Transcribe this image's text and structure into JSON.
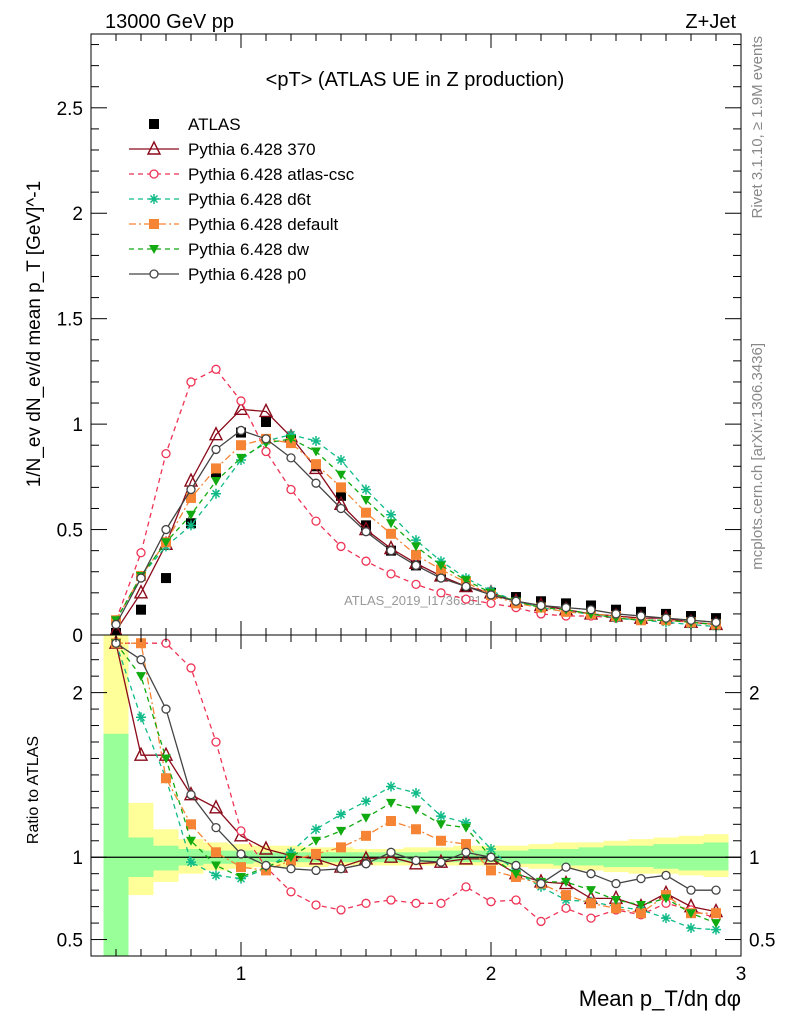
{
  "header": {
    "energy_label": "13000 GeV pp",
    "process_label": "Z+Jet",
    "side_rivet": "Rivet 3.1.10, ≥ 1.9M events",
    "side_mcplots": "mcplots.cern.ch [arXiv:1306.3436]",
    "watermark": "ATLAS_2019_I1736531"
  },
  "chart_data": [
    {
      "type": "scatter",
      "title": "<pT> (ATLAS UE in Z production)",
      "xlabel": "Mean p_T/dη dφ",
      "ylabel": "1/N_ev dN_ev/d mean p_T [GeV]^-1",
      "xlim": [
        0.4,
        3.0
      ],
      "ylim": [
        0,
        2.85
      ],
      "legend_position": "top-left",
      "x_ticks": [
        1,
        2,
        3
      ],
      "y_ticks": [
        0,
        0.5,
        1,
        1.5,
        2,
        2.5
      ],
      "x": [
        0.5,
        0.6,
        0.7,
        0.8,
        0.9,
        1.0,
        1.1,
        1.2,
        1.3,
        1.4,
        1.5,
        1.6,
        1.7,
        1.8,
        1.9,
        2.0,
        2.1,
        2.2,
        2.3,
        2.4,
        2.5,
        2.6,
        2.7,
        2.8,
        2.9
      ],
      "series": [
        {
          "name": "ATLAS",
          "color": "#000000",
          "marker": "square",
          "dash": "none",
          "values": [
            0.01,
            0.12,
            0.27,
            0.53,
            0.77,
            0.96,
            1.01,
            0.93,
            0.8,
            0.66,
            0.52,
            0.4,
            0.33,
            0.28,
            0.23,
            0.2,
            0.18,
            0.16,
            0.15,
            0.14,
            0.12,
            0.11,
            0.1,
            0.09,
            0.08
          ]
        },
        {
          "name": "Pythia 6.428 370",
          "color": "#8b0a1a",
          "marker": "triangle-open",
          "dash": "solid",
          "values": [
            0.02,
            0.2,
            0.43,
            0.73,
            0.95,
            1.07,
            1.06,
            0.94,
            0.79,
            0.62,
            0.5,
            0.41,
            0.34,
            0.28,
            0.23,
            0.2,
            0.16,
            0.14,
            0.12,
            0.1,
            0.09,
            0.08,
            0.08,
            0.06,
            0.05
          ]
        },
        {
          "name": "Pythia 6.428 atlas-csc",
          "color": "#ee3355",
          "marker": "circle-open",
          "dash": "dashed",
          "values": [
            0.07,
            0.39,
            0.86,
            1.2,
            1.26,
            1.11,
            0.87,
            0.69,
            0.54,
            0.42,
            0.35,
            0.29,
            0.24,
            0.2,
            0.17,
            0.15,
            0.13,
            0.1,
            0.09,
            0.09,
            0.08,
            0.07,
            0.07,
            0.06,
            0.05
          ]
        },
        {
          "name": "Pythia 6.428 d6t",
          "color": "#11bb88",
          "marker": "star",
          "dash": "dashed",
          "values": [
            0.07,
            0.28,
            0.42,
            0.52,
            0.67,
            0.83,
            0.92,
            0.95,
            0.92,
            0.83,
            0.69,
            0.57,
            0.45,
            0.35,
            0.27,
            0.21,
            0.16,
            0.13,
            0.11,
            0.1,
            0.08,
            0.07,
            0.06,
            0.05,
            0.04
          ]
        },
        {
          "name": "Pythia 6.428 default",
          "color": "#f58535",
          "marker": "square",
          "dash": "dashdot",
          "values": [
            0.07,
            0.28,
            0.44,
            0.65,
            0.79,
            0.9,
            0.93,
            0.91,
            0.81,
            0.7,
            0.58,
            0.48,
            0.38,
            0.31,
            0.25,
            0.19,
            0.15,
            0.13,
            0.11,
            0.1,
            0.09,
            0.07,
            0.07,
            0.06,
            0.05
          ]
        },
        {
          "name": "Pythia 6.428 dw",
          "color": "#11aa11",
          "marker": "triangle-down",
          "dash": "dashed",
          "values": [
            0.07,
            0.28,
            0.44,
            0.57,
            0.73,
            0.84,
            0.91,
            0.93,
            0.87,
            0.76,
            0.64,
            0.53,
            0.42,
            0.33,
            0.26,
            0.2,
            0.16,
            0.13,
            0.12,
            0.1,
            0.08,
            0.07,
            0.07,
            0.06,
            0.05
          ]
        },
        {
          "name": "Pythia 6.428 p0",
          "color": "#444444",
          "marker": "circle-open",
          "dash": "solid",
          "values": [
            0.05,
            0.27,
            0.5,
            0.69,
            0.88,
            0.97,
            0.93,
            0.84,
            0.72,
            0.6,
            0.49,
            0.4,
            0.33,
            0.27,
            0.23,
            0.19,
            0.16,
            0.14,
            0.13,
            0.12,
            0.1,
            0.09,
            0.08,
            0.07,
            0.06
          ]
        }
      ]
    },
    {
      "type": "scatter",
      "ylabel": "Ratio to ATLAS",
      "xlabel": "Mean p_T/dη dφ",
      "xlim": [
        0.4,
        3.0
      ],
      "ylim": [
        0.4,
        2.35
      ],
      "x_ticks": [
        1,
        2,
        3
      ],
      "y_ticks": [
        0.5,
        1,
        2
      ],
      "reference_line": 1,
      "x": [
        0.5,
        0.6,
        0.7,
        0.8,
        0.9,
        1.0,
        1.1,
        1.2,
        1.3,
        1.4,
        1.5,
        1.6,
        1.7,
        1.8,
        1.9,
        2.0,
        2.1,
        2.2,
        2.3,
        2.4,
        2.5,
        2.6,
        2.7,
        2.8,
        2.9
      ],
      "band_edges": [
        0.45,
        0.55,
        0.65,
        0.75,
        0.85,
        0.95,
        1.05,
        1.15,
        1.25,
        1.35,
        1.45,
        1.55,
        1.65,
        1.75,
        1.85,
        1.95,
        2.05,
        2.15,
        2.25,
        2.35,
        2.45,
        2.55,
        2.65,
        2.75,
        2.85,
        2.95
      ],
      "band_yellow_low": [
        0.0,
        0.77,
        0.85,
        0.9,
        0.92,
        0.93,
        0.94,
        0.94,
        0.94,
        0.95,
        0.95,
        0.95,
        0.95,
        0.95,
        0.95,
        0.95,
        0.94,
        0.93,
        0.93,
        0.92,
        0.91,
        0.9,
        0.9,
        0.89,
        0.88
      ],
      "band_yellow_high": [
        3.0,
        1.33,
        1.17,
        1.11,
        1.09,
        1.08,
        1.07,
        1.07,
        1.06,
        1.06,
        1.05,
        1.05,
        1.06,
        1.06,
        1.07,
        1.07,
        1.07,
        1.08,
        1.09,
        1.09,
        1.1,
        1.11,
        1.12,
        1.13,
        1.14
      ],
      "band_green_low": [
        0.0,
        0.88,
        0.92,
        0.95,
        0.96,
        0.96,
        0.97,
        0.97,
        0.97,
        0.97,
        0.97,
        0.97,
        0.97,
        0.97,
        0.97,
        0.97,
        0.96,
        0.96,
        0.95,
        0.95,
        0.94,
        0.94,
        0.93,
        0.92,
        0.92
      ],
      "band_green_high": [
        1.75,
        1.12,
        1.07,
        1.05,
        1.04,
        1.04,
        1.03,
        1.03,
        1.03,
        1.03,
        1.03,
        1.03,
        1.03,
        1.04,
        1.04,
        1.04,
        1.04,
        1.05,
        1.05,
        1.06,
        1.07,
        1.07,
        1.08,
        1.08,
        1.09
      ],
      "series": [
        {
          "name": "Pythia 6.428 370",
          "color": "#8b0a1a",
          "marker": "triangle-open",
          "dash": "solid",
          "values": [
            2.3,
            1.62,
            1.62,
            1.38,
            1.3,
            1.13,
            1.05,
            1.01,
            0.99,
            0.94,
            0.99,
            1.0,
            0.96,
            0.97,
            0.99,
            0.99,
            0.9,
            0.85,
            0.84,
            0.75,
            0.75,
            0.7,
            0.78,
            0.7,
            0.67
          ]
        },
        {
          "name": "Pythia 6.428 atlas-csc",
          "color": "#ee3355",
          "marker": "circle-open",
          "dash": "dashed",
          "values": [
            2.3,
            2.3,
            2.3,
            2.15,
            1.7,
            1.16,
            0.94,
            0.79,
            0.71,
            0.68,
            0.72,
            0.74,
            0.72,
            0.72,
            0.82,
            0.73,
            0.74,
            0.61,
            0.69,
            0.63,
            0.68,
            0.65,
            0.72,
            0.68,
            0.63
          ]
        },
        {
          "name": "Pythia 6.428 d6t",
          "color": "#11bb88",
          "marker": "star",
          "dash": "dashed",
          "values": [
            2.3,
            1.85,
            1.48,
            0.97,
            0.89,
            0.87,
            0.93,
            1.03,
            1.17,
            1.26,
            1.34,
            1.43,
            1.39,
            1.25,
            1.21,
            1.05,
            0.91,
            0.82,
            0.74,
            0.73,
            0.7,
            0.68,
            0.63,
            0.57,
            0.56
          ]
        },
        {
          "name": "Pythia 6.428 default",
          "color": "#f58535",
          "marker": "square",
          "dash": "dashdot",
          "values": [
            2.3,
            2.3,
            1.48,
            1.2,
            1.03,
            0.94,
            0.92,
            0.98,
            1.02,
            1.06,
            1.13,
            1.22,
            1.17,
            1.1,
            1.08,
            0.92,
            0.88,
            0.84,
            0.77,
            0.72,
            0.69,
            0.66,
            0.77,
            0.66,
            0.66
          ]
        },
        {
          "name": "Pythia 6.428 dw",
          "color": "#11aa11",
          "marker": "triangle-down",
          "dash": "dashed",
          "values": [
            2.3,
            2.1,
            1.6,
            1.1,
            0.95,
            0.88,
            0.94,
            1.0,
            1.1,
            1.16,
            1.24,
            1.33,
            1.29,
            1.2,
            1.18,
            1.0,
            0.9,
            0.85,
            0.85,
            0.8,
            0.74,
            0.71,
            0.75,
            0.66,
            0.6
          ]
        },
        {
          "name": "Pythia 6.428 p0",
          "color": "#444444",
          "marker": "circle-open",
          "dash": "solid",
          "values": [
            2.3,
            2.2,
            1.9,
            1.38,
            1.18,
            1.02,
            0.95,
            0.93,
            0.92,
            0.93,
            0.96,
            1.03,
            0.98,
            0.97,
            1.03,
            1.0,
            0.95,
            0.84,
            0.94,
            0.9,
            0.84,
            0.87,
            0.89,
            0.8,
            0.8
          ]
        }
      ]
    }
  ]
}
